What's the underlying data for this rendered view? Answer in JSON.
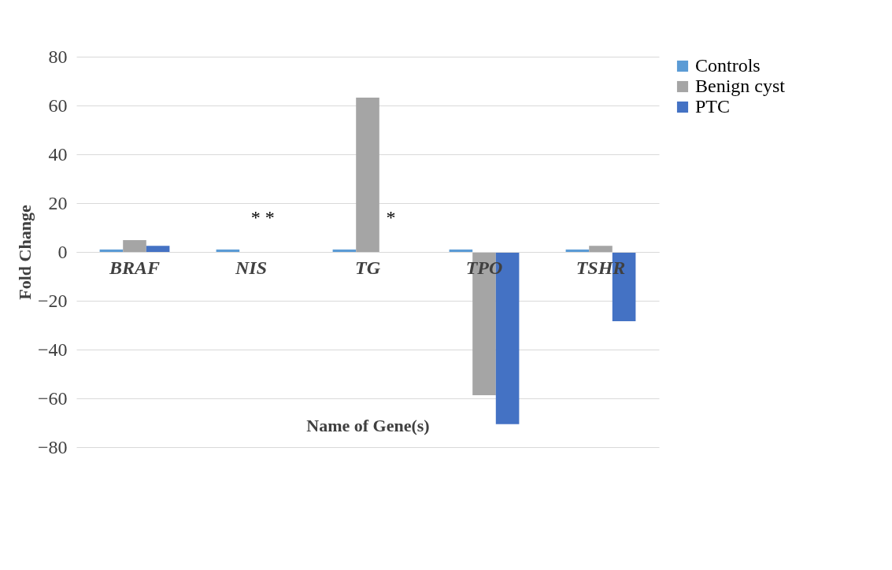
{
  "chart_data": {
    "type": "bar",
    "xlabel": "Name of Gene(s)",
    "ylabel": "Fold Change",
    "categories": [
      "BRAF",
      "NIS",
      "TG",
      "TPO",
      "TSHR"
    ],
    "series": [
      {
        "name": "Controls",
        "color": "#5b9bd5",
        "values": [
          1,
          1,
          1,
          1,
          1
        ]
      },
      {
        "name": "Benign cyst",
        "color": "#a5a5a5",
        "values": [
          4.8,
          null,
          63.2,
          -58.7,
          2.5
        ]
      },
      {
        "name": "PTC",
        "color": "#4472c4",
        "values": [
          2.5,
          null,
          null,
          -70.6,
          -28.4
        ]
      }
    ],
    "annotations": [
      "*  *",
      "*"
    ],
    "ylim": [
      -80,
      80
    ],
    "yticks": [
      -80,
      -60,
      -40,
      -20,
      0,
      20,
      40,
      60,
      80
    ],
    "grid": "y",
    "legend": "right"
  }
}
